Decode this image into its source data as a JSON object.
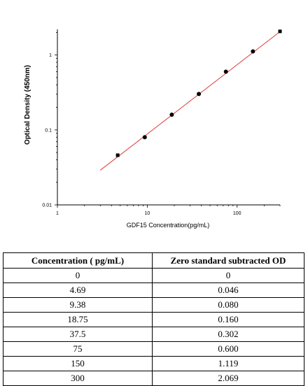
{
  "chart_data": {
    "type": "scatter",
    "title": "",
    "xlabel": "GDF15  Concentration(pg/mL)",
    "ylabel": "Optical Density (450nm)",
    "xscale": "log",
    "yscale": "log",
    "xlim": [
      1,
      300
    ],
    "ylim": [
      0.01,
      2.2
    ],
    "xticks": [
      "1",
      "10",
      "100"
    ],
    "yticks": [
      "0.01",
      "0.1",
      "1"
    ],
    "x": [
      4.69,
      9.38,
      18.75,
      37.5,
      75,
      150,
      300
    ],
    "y": [
      0.046,
      0.08,
      0.16,
      0.302,
      0.6,
      1.119,
      2.069
    ],
    "fit_line": {
      "x": [
        3,
        300
      ],
      "y": [
        0.029,
        2.05
      ],
      "color": "#e23b3b"
    },
    "marker_color": "#000000"
  },
  "table": {
    "headers": [
      "Concentration ( pg/mL)",
      "Zero standard subtracted OD"
    ],
    "rows": [
      [
        "0",
        "0"
      ],
      [
        "4.69",
        "0.046"
      ],
      [
        "9.38",
        "0.080"
      ],
      [
        "18.75",
        "0.160"
      ],
      [
        "37.5",
        "0.302"
      ],
      [
        "75",
        "0.600"
      ],
      [
        "150",
        "1.119"
      ],
      [
        "300",
        "2.069"
      ]
    ]
  }
}
